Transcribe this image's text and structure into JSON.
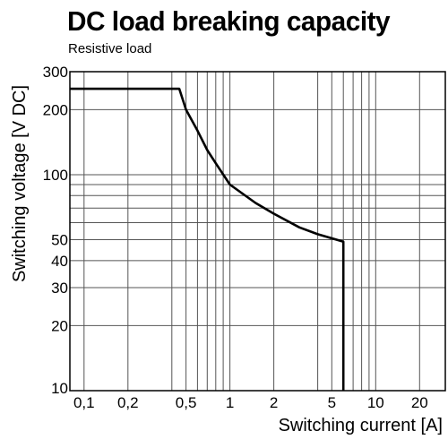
{
  "chart_data": {
    "type": "line",
    "title": "DC load breaking capacity",
    "subtitle": "Resistive load",
    "xlabel": "Switching current [A]",
    "ylabel": "Switching voltage [V DC]",
    "x_scale": "log",
    "y_scale": "log",
    "xlim": [
      0.08,
      30
    ],
    "ylim": [
      10,
      300
    ],
    "grid": true,
    "x_ticks": [
      {
        "value": 0.1,
        "label": "0,1"
      },
      {
        "value": 0.2,
        "label": "0,2"
      },
      {
        "value": 0.5,
        "label": "0,5"
      },
      {
        "value": 1,
        "label": "1"
      },
      {
        "value": 2,
        "label": "2"
      },
      {
        "value": 5,
        "label": "5"
      },
      {
        "value": 10,
        "label": "10"
      },
      {
        "value": 20,
        "label": "20"
      }
    ],
    "y_ticks": [
      {
        "value": 10,
        "label": "10"
      },
      {
        "value": 20,
        "label": "20"
      },
      {
        "value": 30,
        "label": "30"
      },
      {
        "value": 40,
        "label": "40"
      },
      {
        "value": 50,
        "label": "50"
      },
      {
        "value": 100,
        "label": "100"
      },
      {
        "value": 200,
        "label": "200"
      },
      {
        "value": 300,
        "label": "300"
      }
    ],
    "x_gridlines": [
      0.1,
      0.2,
      0.4,
      0.5,
      0.6,
      0.7,
      0.8,
      0.9,
      1,
      2,
      4,
      5,
      6,
      7,
      8,
      9,
      10,
      20
    ],
    "y_gridlines": [
      10,
      20,
      30,
      40,
      50,
      60,
      70,
      80,
      90,
      100,
      200,
      300
    ],
    "series": [
      {
        "points": [
          [
            0.08,
            250
          ],
          [
            0.45,
            250
          ],
          [
            0.5,
            200
          ],
          [
            0.6,
            160
          ],
          [
            0.7,
            130
          ],
          [
            0.8,
            113
          ],
          [
            1.0,
            90
          ],
          [
            1.5,
            74
          ],
          [
            2.0,
            66
          ],
          [
            3.0,
            57
          ],
          [
            4.0,
            53
          ],
          [
            6.0,
            49
          ],
          [
            6.0,
            10
          ]
        ]
      }
    ]
  }
}
